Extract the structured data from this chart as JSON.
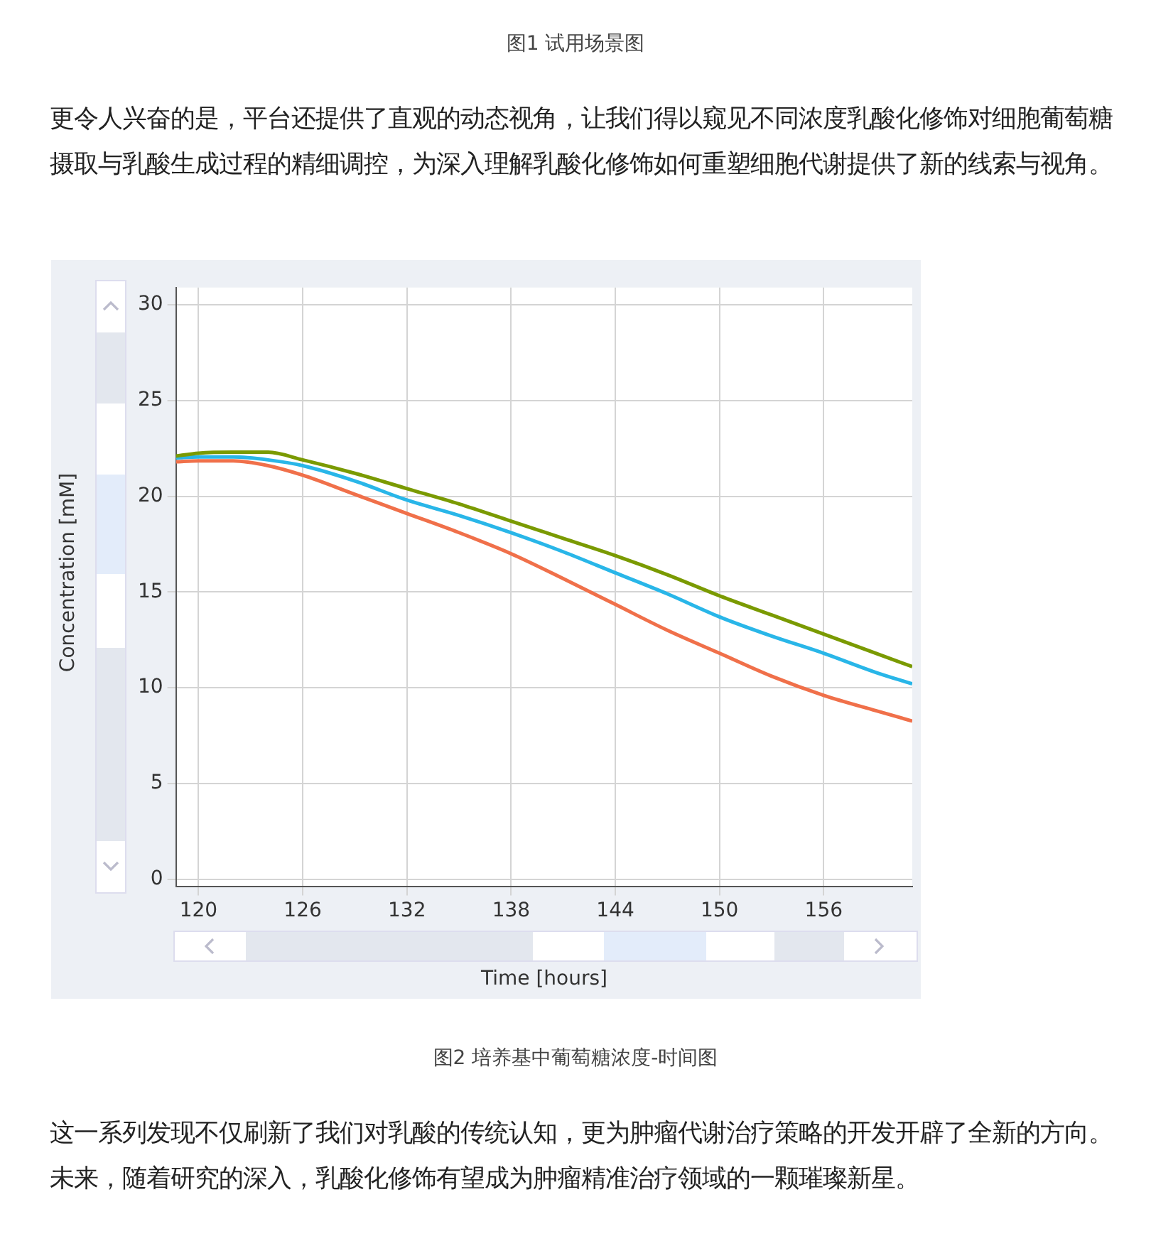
{
  "chart_data": {
    "type": "line",
    "title": "图2 培养基中葡萄糖浓度-时间图",
    "annotations": [
      "图1 试用场景图",
      "更令人兴奋的是，平台还提供了直观的动态视角，让我们得以窥见不同浓度乳酸化修饰对细胞葡萄糖摄取与乳酸生成过程的精细调控，为深入理解乳酸化修饰如何重塑细胞代谢提供了新的线索与视角。",
      "这一系列发现不仅刷新了我们对乳酸的传统认知，更为肿瘤代谢治疗策略的开发开辟了全新的方向。未来，随着研究的深入，乳酸化修饰有望成为肿瘤精准治疗领域的一颗璀璨新星。"
    ],
    "xlabel": "Time [hours]",
    "ylabel": "Concentration [mM]",
    "x": [
      118.7,
      120,
      122,
      124,
      126,
      129,
      132,
      135,
      138,
      141,
      144,
      147,
      150,
      153,
      156,
      159,
      161.1
    ],
    "series": [
      {
        "color": "#7a9a01",
        "values": [
          22.1,
          22.25,
          22.3,
          22.3,
          21.9,
          21.2,
          20.4,
          19.6,
          18.7,
          17.8,
          16.9,
          15.9,
          14.8,
          13.8,
          12.8,
          11.8,
          11.1
        ]
      },
      {
        "color": "#29b6e8",
        "values": [
          22.0,
          22.05,
          22.05,
          21.9,
          21.6,
          20.8,
          19.8,
          19.0,
          18.1,
          17.1,
          16.0,
          14.9,
          13.7,
          12.7,
          11.8,
          10.8,
          10.2
        ]
      },
      {
        "color": "#f0704a",
        "values": [
          21.8,
          21.85,
          21.85,
          21.6,
          21.1,
          20.1,
          19.1,
          18.1,
          17.0,
          15.7,
          14.35,
          13.0,
          11.8,
          10.6,
          9.6,
          8.8,
          8.26
        ]
      }
    ],
    "xlim": [
      118.7,
      161.1
    ],
    "xticks": [
      120,
      126,
      132,
      138,
      144,
      150,
      156
    ],
    "ylim": [
      -0.4,
      30.9
    ],
    "yticks": [
      0,
      5,
      10,
      15,
      20,
      25,
      30
    ],
    "grid": true,
    "legend": false,
    "marker": "none",
    "line_style": "solid"
  }
}
